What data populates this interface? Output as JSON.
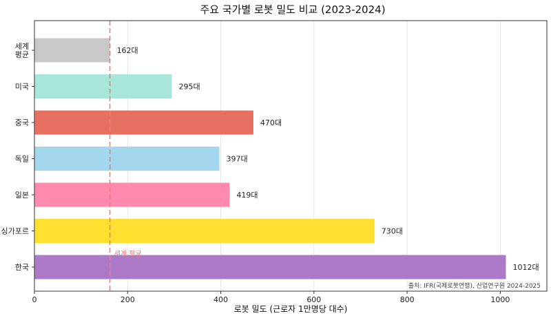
{
  "chart_data": {
    "type": "bar",
    "orientation": "horizontal",
    "title": "주요 국가별 로봇 밀도 비교 (2023-2024)",
    "xlabel": "로봇 밀도 (근로자 1만명당 대수)",
    "ylabel": "",
    "xlim": [
      0,
      1100
    ],
    "x_ticks": [
      0,
      200,
      400,
      600,
      800,
      1000
    ],
    "grid": "vertical",
    "categories": [
      {
        "label_lines": [
          "세계",
          "평균"
        ],
        "value": 162,
        "value_label": "162대",
        "color": "#c8c8c8"
      },
      {
        "label_lines": [
          "미국"
        ],
        "value": 295,
        "value_label": "295대",
        "color": "#a8e6da"
      },
      {
        "label_lines": [
          "중국"
        ],
        "value": 470,
        "value_label": "470대",
        "color": "#e87061"
      },
      {
        "label_lines": [
          "독일"
        ],
        "value": 397,
        "value_label": "397대",
        "color": "#a2d7ee"
      },
      {
        "label_lines": [
          "일본"
        ],
        "value": 419,
        "value_label": "419대",
        "color": "#ff8aad"
      },
      {
        "label_lines": [
          "싱가포르"
        ],
        "value": 730,
        "value_label": "730대",
        "color": "#ffdf30"
      },
      {
        "label_lines": [
          "한국"
        ],
        "value": 1012,
        "value_label": "1012대",
        "color": "#ab79c6"
      }
    ],
    "reference_line": {
      "value": 162,
      "label": "세계 평균",
      "color": "#e87e7e",
      "style": "dashed"
    },
    "annotation": "출처: IFR(국제로봇연맹), 산업연구원 2024-2025"
  }
}
